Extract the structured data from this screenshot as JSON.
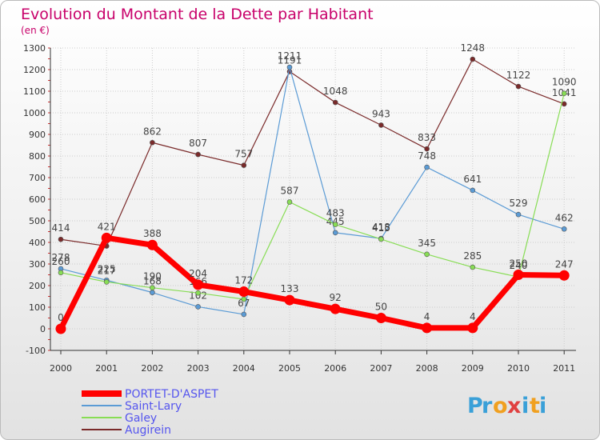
{
  "chart_data": {
    "type": "line",
    "title": "Evolution du Montant de la Dette par Habitant",
    "subtitle": "(en €)",
    "xlabel": "",
    "ylabel": "",
    "categories": [
      "2000",
      "2001",
      "2002",
      "2003",
      "2004",
      "2005",
      "2006",
      "2007",
      "2008",
      "2009",
      "2010",
      "2011"
    ],
    "ylim": [
      -100,
      1300
    ],
    "yticks": [
      "-100",
      "0",
      "100",
      "200",
      "300",
      "400",
      "500",
      "600",
      "700",
      "800",
      "900",
      "1000",
      "1100",
      "1200",
      "1300"
    ],
    "grid": true,
    "legend_position": "bottom-left",
    "series": [
      {
        "name": "Augirein",
        "color": "#7a2a2a",
        "values": [
          414,
          383,
          862,
          807,
          757,
          1191,
          1048,
          943,
          833,
          1248,
          1122,
          1041
        ],
        "labels": [
          "414",
          "",
          "862",
          "807",
          "757",
          "1191",
          "1048",
          "943",
          "833",
          "1248",
          "1122",
          "1041"
        ]
      },
      {
        "name": "Saint-Lary",
        "color": "#5b9bd5",
        "values": [
          278,
          225,
          168,
          102,
          67,
          1211,
          445,
          418,
          748,
          641,
          529,
          462
        ],
        "labels": [
          "278",
          "225",
          "168",
          "102",
          "67",
          "1211",
          "445",
          "418",
          "748",
          "641",
          "529",
          "462"
        ]
      },
      {
        "name": "Galey",
        "color": "#88dd55",
        "values": [
          260,
          217,
          190,
          166,
          137,
          587,
          483,
          415,
          345,
          285,
          240,
          1090
        ],
        "labels": [
          "260",
          "217",
          "190",
          "166",
          "",
          "587",
          "483",
          "415",
          "345",
          "285",
          "240",
          "1090"
        ]
      },
      {
        "name": "PORTET-D'ASPET",
        "color": "#ff0000",
        "values": [
          0,
          421,
          388,
          204,
          172,
          133,
          92,
          50,
          4,
          4,
          250,
          247
        ],
        "labels": [
          "0",
          "421",
          "388",
          "204",
          "172",
          "133",
          "92",
          "50",
          "4",
          "4",
          "250",
          "247"
        ]
      }
    ],
    "legend": [
      "PORTET-D'ASPET",
      "Saint-Lary",
      "Galey",
      "Augirein"
    ]
  },
  "brand": {
    "letters": [
      "P",
      "r",
      "o",
      "x",
      "i",
      "t",
      "i"
    ],
    "colors": [
      "#3aa0d8",
      "#3aa0d8",
      "#f0a020",
      "#e04040",
      "#3aa0d8",
      "#f0a020",
      "#3aa0d8"
    ]
  },
  "colors": {
    "title": "#c8006a",
    "legend_text": "#5555ee",
    "axis": "#333333",
    "grid": "#cccccc",
    "label": "#444444"
  }
}
